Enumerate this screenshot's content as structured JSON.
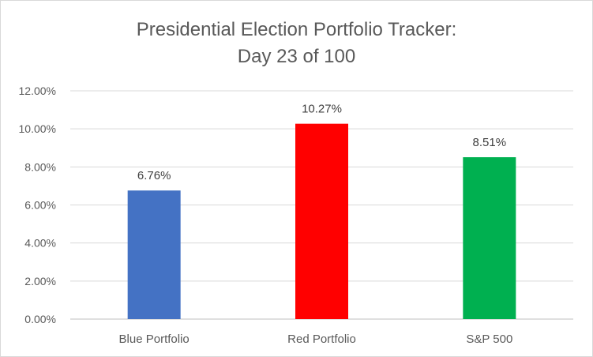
{
  "chart_data": {
    "type": "bar",
    "title": "Presidential Election Portfolio Tracker:",
    "subtitle": "Day 23 of 100",
    "categories": [
      "Blue Portfolio",
      "Red Portfolio",
      "S&P 500"
    ],
    "values": [
      6.76,
      10.27,
      8.51
    ],
    "data_labels": [
      "6.76%",
      "10.27%",
      "8.51%"
    ],
    "colors": [
      "#4472C4",
      "#FF0000",
      "#00B050"
    ],
    "ylim": [
      0,
      12
    ],
    "y_ticks": [
      0,
      2,
      4,
      6,
      8,
      10,
      12
    ],
    "y_tick_labels": [
      "0.00%",
      "2.00%",
      "4.00%",
      "6.00%",
      "8.00%",
      "10.00%",
      "12.00%"
    ],
    "xlabel": "",
    "ylabel": "",
    "grid": true,
    "legend": false
  }
}
